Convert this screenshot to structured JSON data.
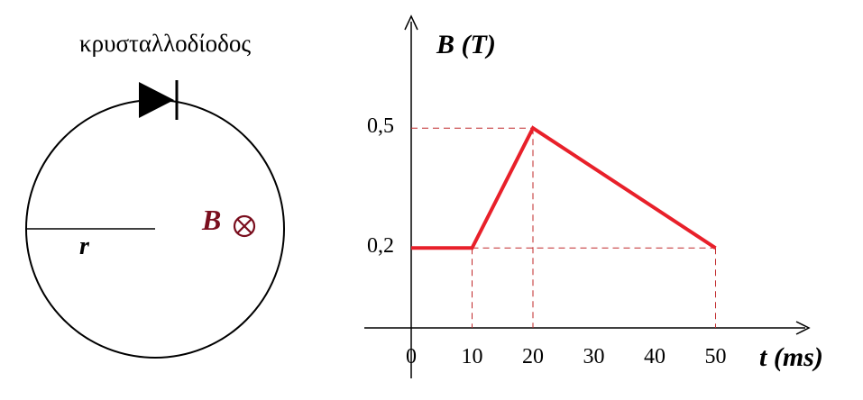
{
  "circuit": {
    "diode_label": "κρυσταλλοδίοδος",
    "radius_label": "r",
    "field_label": "B",
    "field_direction_icon": "into-page-cross-icon",
    "field_color": "#7a0e1e"
  },
  "chart_data": {
    "type": "line",
    "ylabel": "B (T)",
    "xlabel": "t (ms)",
    "x_ticks": [
      "0",
      "10",
      "20",
      "30",
      "40",
      "50"
    ],
    "y_ticks": [
      "0,2",
      "0,5"
    ],
    "xlim": [
      0,
      65
    ],
    "ylim": [
      0,
      0.78
    ],
    "grid": false,
    "series": [
      {
        "x": [
          0,
          10,
          20,
          50
        ],
        "y": [
          0.2,
          0.2,
          0.5,
          0.2
        ],
        "color": "#e8202a"
      }
    ],
    "guides_color": "#c0282a"
  }
}
